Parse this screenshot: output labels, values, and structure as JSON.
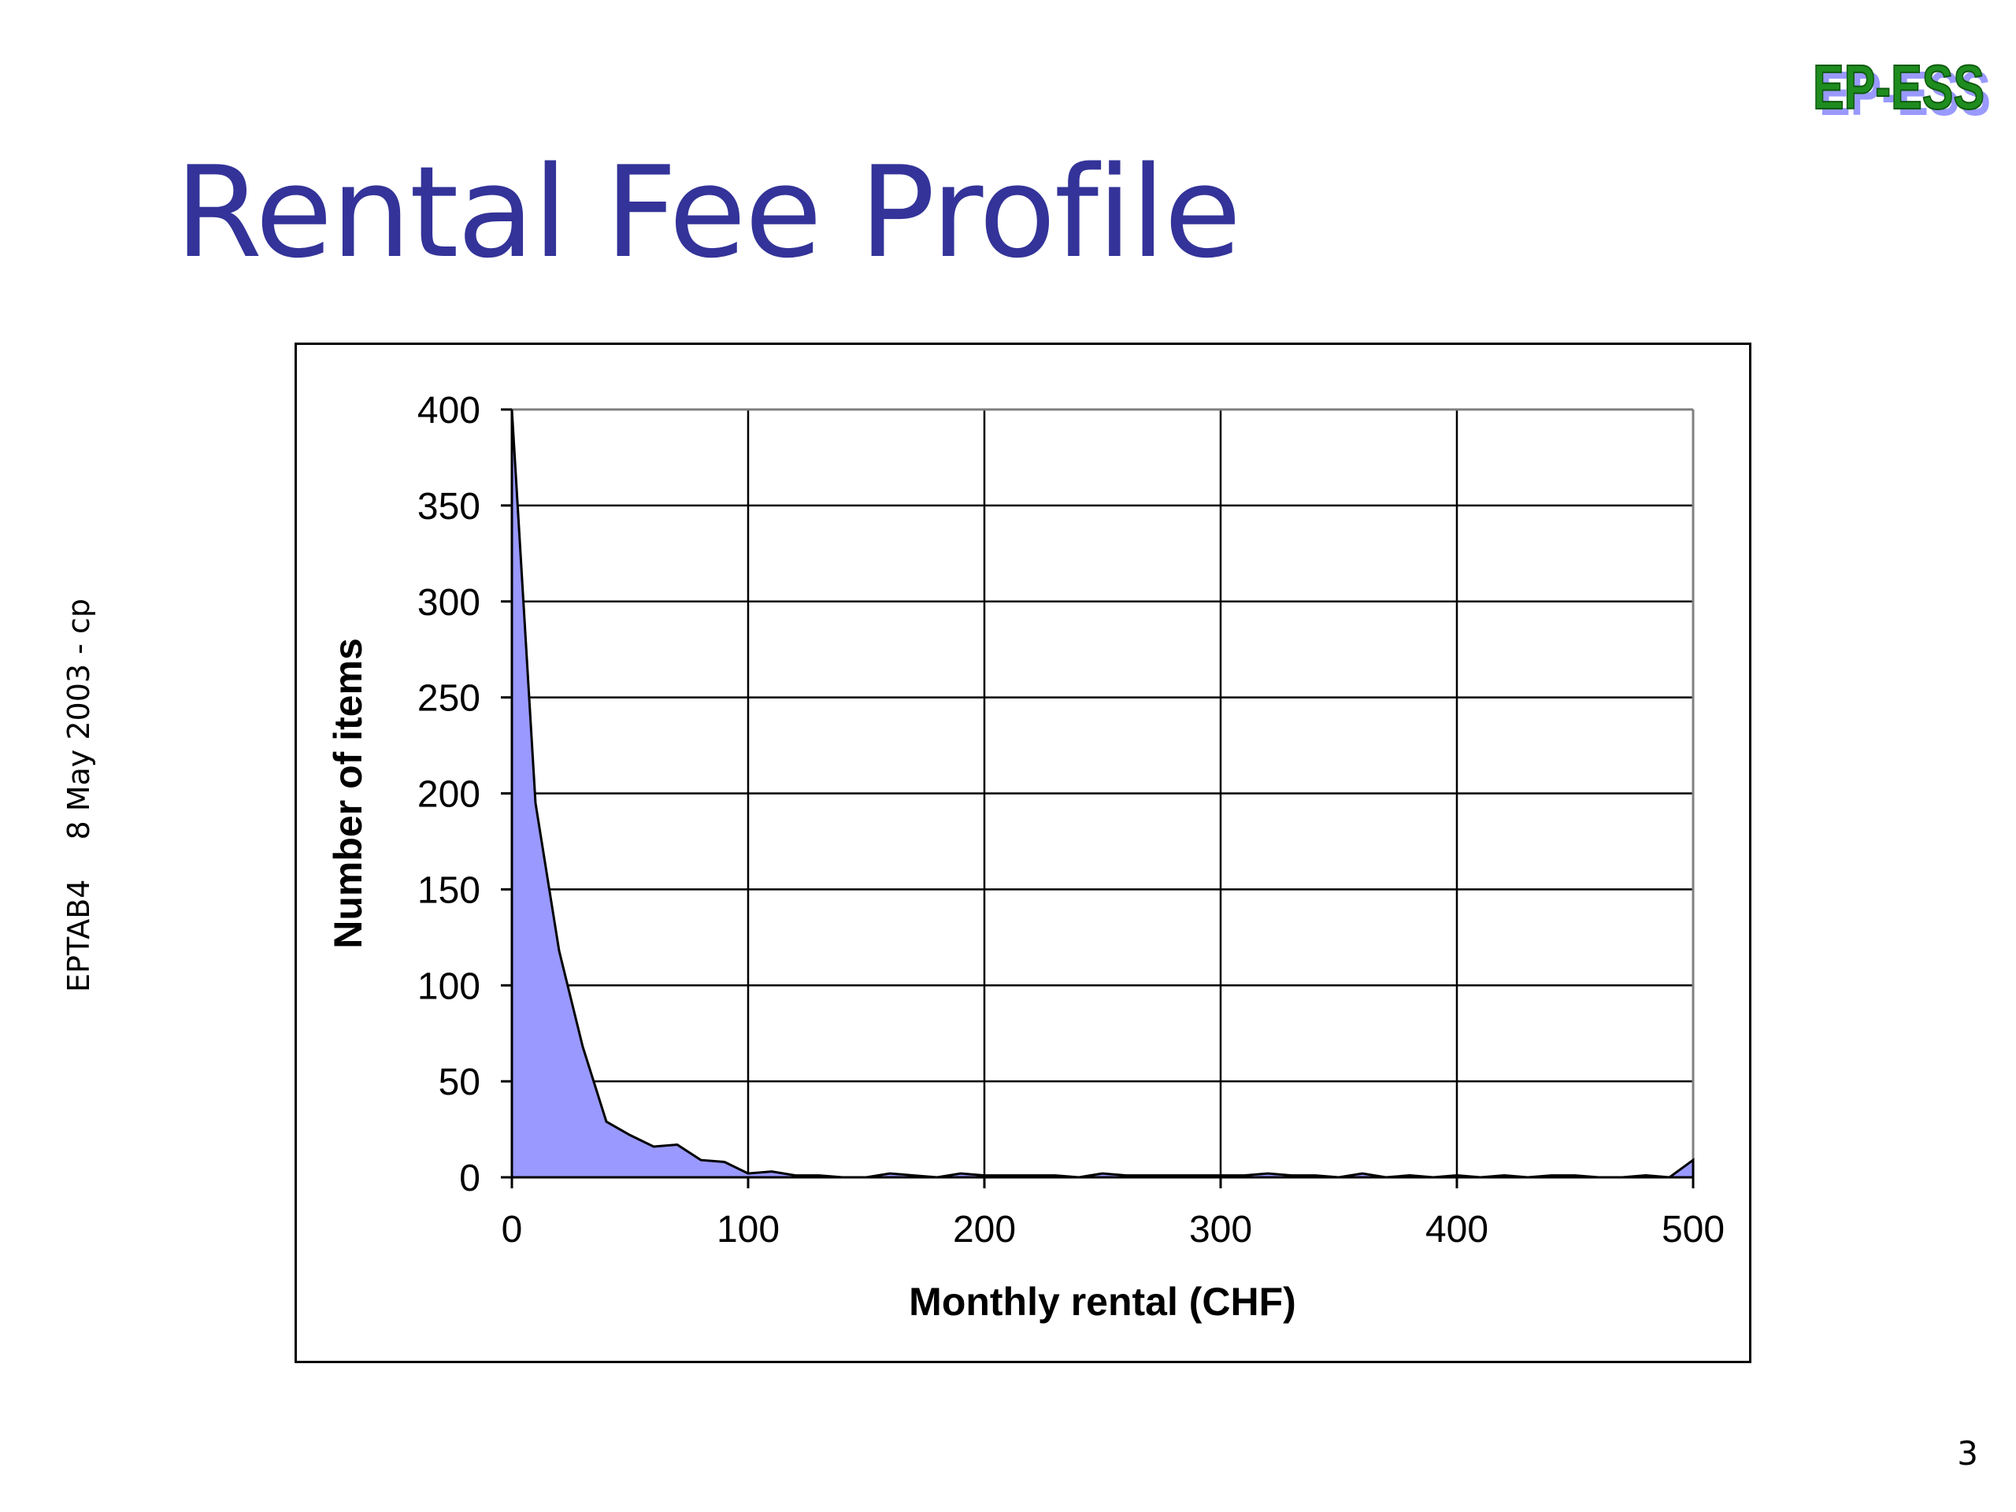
{
  "slide": {
    "title": "Rental Fee Profile",
    "logo_text": "EP-ESS",
    "side_label_left": "EPTAB4",
    "side_label_right": "8 May 2003 - cp",
    "page_number": "3"
  },
  "colors": {
    "title": "#333399",
    "logo_green": "#1e8c1e",
    "logo_shadow": "#9999ff",
    "area_fill": "#9999ff",
    "area_stroke": "#000000"
  },
  "chart_data": {
    "type": "area",
    "title": "",
    "xlabel": "Monthly rental (CHF)",
    "ylabel": "Number of items",
    "xlim": [
      0,
      500
    ],
    "ylim": [
      0,
      400
    ],
    "xticks": [
      0,
      100,
      200,
      300,
      400,
      500
    ],
    "yticks": [
      0,
      50,
      100,
      150,
      200,
      250,
      300,
      350,
      400
    ],
    "grid": true,
    "legend": "none",
    "series": [
      {
        "x": [
          0,
          10,
          20,
          30,
          40,
          50,
          60,
          70,
          80,
          90,
          100,
          110,
          120,
          130,
          140,
          150,
          160,
          170,
          180,
          190,
          200,
          210,
          220,
          230,
          240,
          250,
          260,
          270,
          280,
          290,
          300,
          310,
          320,
          330,
          340,
          350,
          360,
          370,
          380,
          390,
          400,
          410,
          420,
          430,
          440,
          450,
          460,
          470,
          480,
          490,
          500
        ],
        "values": [
          400,
          195,
          118,
          68,
          29,
          22,
          16,
          17,
          9,
          8,
          2,
          3,
          1,
          1,
          0,
          0,
          2,
          1,
          0,
          2,
          1,
          1,
          1,
          1,
          0,
          2,
          1,
          1,
          1,
          1,
          1,
          1,
          2,
          1,
          1,
          0,
          2,
          0,
          1,
          0,
          1,
          0,
          1,
          0,
          1,
          1,
          0,
          0,
          1,
          0,
          9
        ]
      }
    ]
  }
}
